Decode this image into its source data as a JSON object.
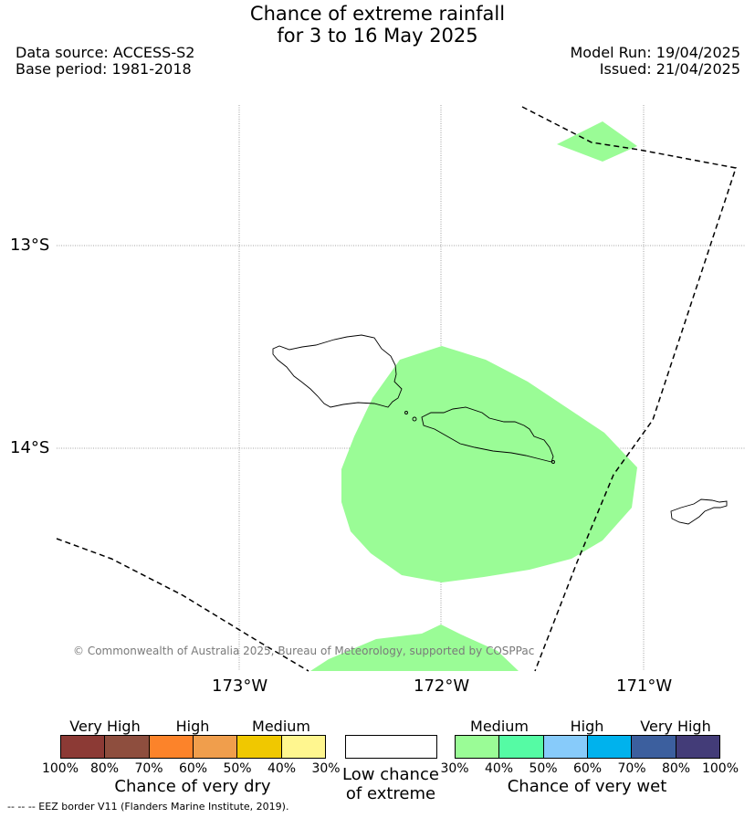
{
  "title": {
    "line1": "Chance of extreme rainfall",
    "line2": "for 3 to 16 May 2025"
  },
  "meta": {
    "data_source": "Data source: ACCESS-S2",
    "base_period": "Base period: 1981-2018",
    "model_run": "Model Run: 19/04/2025",
    "issued": "Issued: 21/04/2025"
  },
  "map": {
    "lat_labels": [
      "13°S",
      "14°S"
    ],
    "lon_labels": [
      "173°W",
      "172°W",
      "171°W"
    ],
    "copyright": "© Commonwealth of Australia 2025, Bureau of Meteorology, supported by COSPPac",
    "colors": {
      "medium_wet": "#9afc96",
      "eez": "#000000",
      "grid": "#888888"
    }
  },
  "legend": {
    "dry": {
      "categories": [
        "Very High",
        "High",
        "Medium"
      ],
      "ticks": [
        "100%",
        "80%",
        "70%",
        "60%",
        "50%",
        "40%",
        "30%"
      ],
      "colors": [
        "#8c3a35",
        "#8e4e3e",
        "#fc832a",
        "#f09e4c",
        "#f0c800",
        "#fff68f"
      ],
      "title": "Chance of very dry"
    },
    "neutral": {
      "line1": "Low chance",
      "line2": "of extreme"
    },
    "wet": {
      "categories": [
        "Medium",
        "High",
        "Very High"
      ],
      "ticks": [
        "30%",
        "40%",
        "50%",
        "60%",
        "70%",
        "80%",
        "100%"
      ],
      "colors": [
        "#9afc96",
        "#55fba4",
        "#87cbfa",
        "#00b2ed",
        "#3c5f9e",
        "#433c78"
      ],
      "title": "Chance of very wet"
    },
    "eez_note": "-- -- -- EEZ border V11 (Flanders Marine Institute, 2019)."
  }
}
